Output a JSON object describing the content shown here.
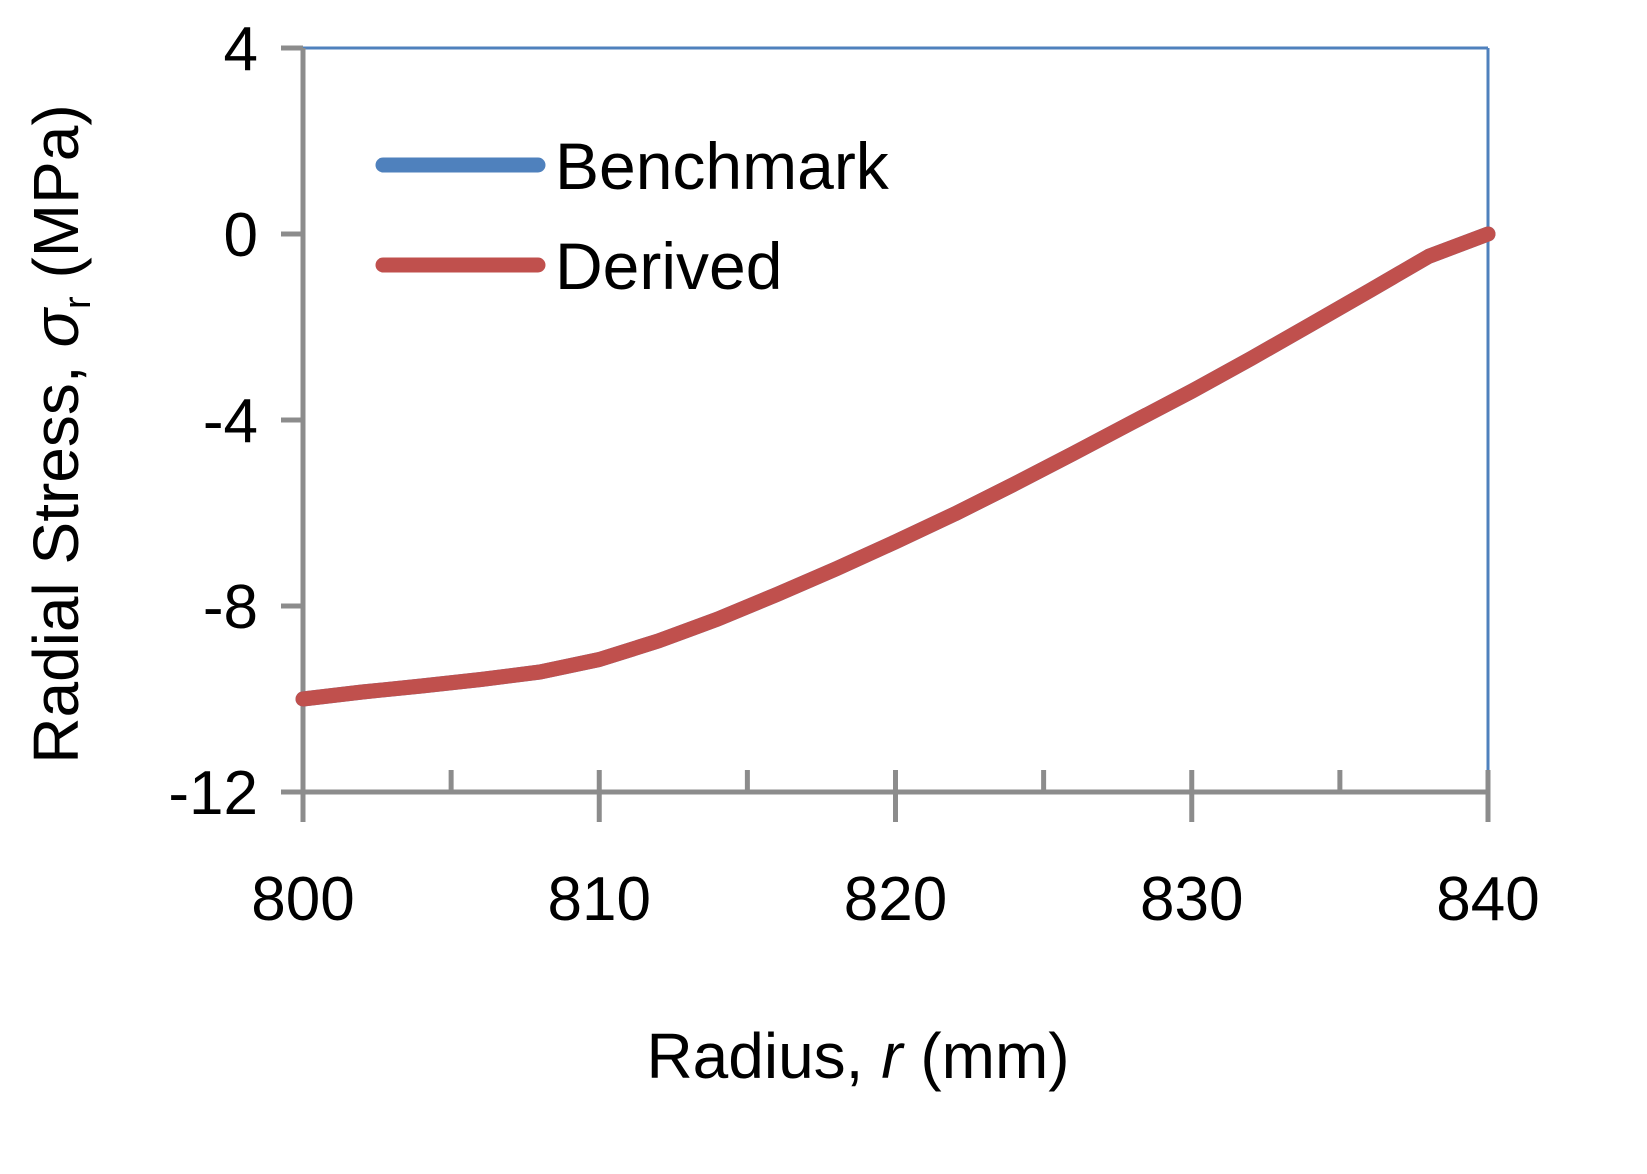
{
  "chart_data": {
    "type": "line",
    "title": "",
    "xlabel": {
      "prefix": "Radius, ",
      "symbol": "r",
      "suffix": " (mm)"
    },
    "ylabel": {
      "prefix": "Radial Stress, ",
      "symbol": "σ",
      "subscript": "r",
      "suffix": " (MPa)"
    },
    "xlim": [
      800,
      840
    ],
    "ylim": [
      -12,
      4
    ],
    "x_ticks": [
      800,
      810,
      820,
      830,
      840
    ],
    "x_tick_labels": [
      "800",
      "810",
      "820",
      "830",
      "840"
    ],
    "x_minor_ticks": [
      805,
      815,
      825,
      835
    ],
    "y_ticks": [
      -12,
      -8,
      -4,
      0,
      4
    ],
    "y_tick_labels": [
      "-12",
      "-8",
      "-4",
      "0",
      "4"
    ],
    "grid": false,
    "legend_position": "top-left",
    "colors": {
      "axis": "#8c8c8c",
      "benchmark": "#4f81bd",
      "derived": "#c0504d"
    },
    "series": [
      {
        "name": "Benchmark",
        "x": [
          800,
          802,
          804,
          806,
          808,
          810,
          812,
          814,
          816,
          818,
          820,
          822,
          824,
          826,
          828,
          830,
          832,
          834,
          836,
          838,
          840
        ],
        "y": [
          -10,
          -9.85,
          -9.72,
          -9.58,
          -9.42,
          -9.15,
          -8.75,
          -8.28,
          -7.75,
          -7.2,
          -6.62,
          -6.02,
          -5.38,
          -4.72,
          -4.05,
          -3.38,
          -2.68,
          -1.95,
          -1.22,
          -0.48,
          0
        ],
        "color": "#4f81bd"
      },
      {
        "name": "Derived",
        "x": [
          800,
          802,
          804,
          806,
          808,
          810,
          812,
          814,
          816,
          818,
          820,
          822,
          824,
          826,
          828,
          830,
          832,
          834,
          836,
          838,
          840
        ],
        "y": [
          -10,
          -9.85,
          -9.72,
          -9.58,
          -9.42,
          -9.15,
          -8.75,
          -8.28,
          -7.75,
          -7.2,
          -6.62,
          -6.02,
          -5.38,
          -4.72,
          -4.05,
          -3.38,
          -2.68,
          -1.95,
          -1.22,
          -0.48,
          0
        ],
        "color": "#c0504d"
      }
    ]
  }
}
